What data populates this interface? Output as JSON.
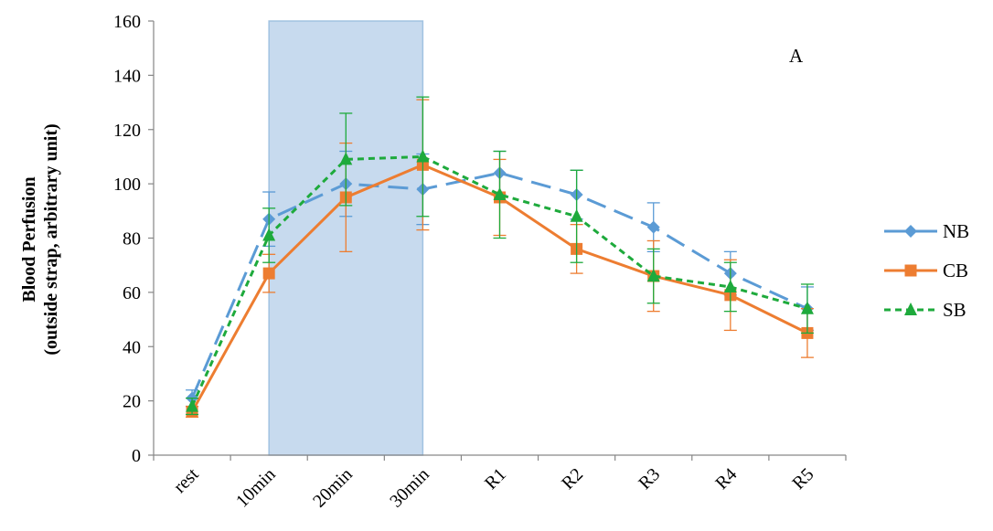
{
  "chart_data": {
    "type": "line",
    "panel_label": "A",
    "ylabel_line1": "Blood Perfusion",
    "ylabel_line2": "(outside strap, arbitrary unit)",
    "xlabel": "",
    "categories": [
      "rest",
      "10min",
      "20min",
      "30min",
      "R1",
      "R2",
      "R3",
      "R4",
      "R5"
    ],
    "ylim": [
      0,
      160
    ],
    "yticks": [
      0,
      20,
      40,
      60,
      80,
      100,
      120,
      140,
      160
    ],
    "grid": false,
    "legend_position": "right",
    "shaded_region": {
      "from": "10min",
      "to": "30min",
      "color": "#c5d9ee"
    },
    "series": [
      {
        "name": "NB",
        "color": "#5b9bd5",
        "marker": "diamond",
        "line": "long-dash",
        "values": [
          21,
          87,
          100,
          98,
          104,
          96,
          84,
          67,
          54
        ],
        "error": [
          3,
          10,
          12,
          13,
          8,
          9,
          9,
          8,
          8
        ]
      },
      {
        "name": "CB",
        "color": "#ed7d31",
        "marker": "square",
        "line": "solid",
        "values": [
          16,
          67,
          95,
          107,
          95,
          76,
          66,
          59,
          45
        ],
        "error": [
          2,
          7,
          20,
          24,
          14,
          9,
          13,
          13,
          9
        ]
      },
      {
        "name": "SB",
        "color": "#1eaa3c",
        "marker": "triangle",
        "line": "short-dash",
        "values": [
          18,
          81,
          109,
          110,
          96,
          88,
          66,
          62,
          54
        ],
        "error": [
          3,
          10,
          17,
          22,
          16,
          17,
          10,
          9,
          9
        ]
      }
    ]
  }
}
